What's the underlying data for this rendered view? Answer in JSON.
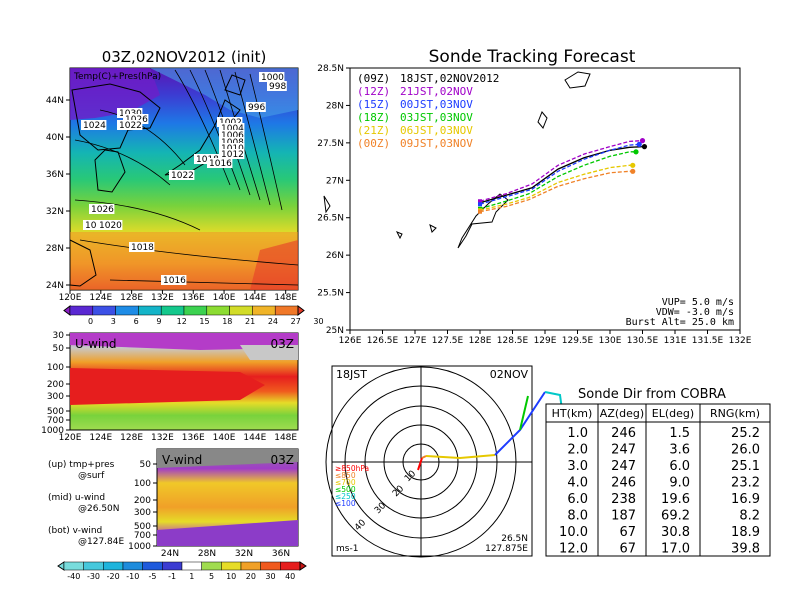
{
  "map_panel": {
    "title": "03Z,02NOV2012 (init)",
    "overlay_label": "Temp(C)+Pres(hPa)",
    "lon_ticks": [
      "120E",
      "124E",
      "128E",
      "132E",
      "136E",
      "140E",
      "144E",
      "148E"
    ],
    "lat_ticks": [
      "44N",
      "40N",
      "36N",
      "32N",
      "28N",
      "24N"
    ],
    "isobar_labels": [
      "1000",
      "998",
      "996",
      "1002",
      "1004",
      "1006",
      "1008",
      "1010",
      "1012",
      "1018",
      "1016",
      "1022",
      "1024",
      "1026",
      "1028",
      "1030",
      "1026",
      "1022",
      "1020",
      "1018",
      "1016"
    ],
    "colorbar_ticks": [
      "0",
      "3",
      "6",
      "9",
      "12",
      "15",
      "18",
      "21",
      "24",
      "27",
      "30"
    ]
  },
  "u_panel": {
    "label": "U-wind",
    "time": "03Z",
    "y_ticks": [
      "30",
      "50",
      "100",
      "200",
      "300",
      "500",
      "700",
      "1000"
    ],
    "x_ticks": [
      "120E",
      "124E",
      "128E",
      "132E",
      "136E",
      "140E",
      "144E",
      "148E"
    ]
  },
  "v_panel": {
    "label": "V-wind",
    "time": "03Z",
    "y_ticks": [
      "50",
      "100",
      "200",
      "300",
      "500",
      "700",
      "1000"
    ],
    "x_ticks": [
      "24N",
      "28N",
      "32N",
      "36N"
    ]
  },
  "notes": {
    "up_a": "(up) tmp+pres",
    "up_b": "@surf",
    "mid_a": "(mid) u-wind",
    "mid_b": "@26.50N",
    "bot_a": "(bot) v-wind",
    "bot_b": "@127.84E"
  },
  "wind_colorbar_ticks": [
    "-40",
    "-30",
    "-20",
    "-10",
    "-5",
    "-1",
    "1",
    "5",
    "10",
    "20",
    "30",
    "40"
  ],
  "track_chart": {
    "title": "Sonde Tracking Forecast",
    "x_ticks": [
      "126E",
      "126.5E",
      "127E",
      "127.5E",
      "128E",
      "128.5E",
      "129E",
      "129.5E",
      "130E",
      "130.5E",
      "131E",
      "131.5E",
      "132E"
    ],
    "y_ticks": [
      "28.5N",
      "28N",
      "27.5N",
      "27N",
      "26.5N",
      "26N",
      "25.5N",
      "25N"
    ],
    "legend": [
      {
        "code": "(09Z)",
        "text": "18JST,02NOV2012",
        "color": "#000000"
      },
      {
        "code": "(12Z)",
        "text": "21JST,02NOV",
        "color": "#a000c8"
      },
      {
        "code": "(15Z)",
        "text": "00JST,03NOV",
        "color": "#1e3cff"
      },
      {
        "code": "(18Z)",
        "text": "03JST,03NOV",
        "color": "#00c800"
      },
      {
        "code": "(21Z)",
        "text": "06JST,03NOV",
        "color": "#e6c800"
      },
      {
        "code": "(00Z)",
        "text": "09JST,03NOV",
        "color": "#f08228"
      }
    ],
    "params": [
      "VUP= 5.0 m/s",
      "VDW= -3.0 m/s",
      "Burst Alt= 25.0 km"
    ]
  },
  "chart_data": {
    "type": "line",
    "title": "Sonde Tracking Forecast",
    "xlabel": "",
    "ylabel": "",
    "xlim": [
      126,
      132
    ],
    "ylim": [
      25,
      28.5
    ],
    "series": [
      {
        "name": "(09Z) 18JST,02NOV2012",
        "color": "#000000",
        "x": [
          128.0,
          128.4,
          128.8,
          129.2,
          129.6,
          130.0,
          130.3,
          130.53
        ],
        "y": [
          26.7,
          26.8,
          26.9,
          27.15,
          27.3,
          27.4,
          27.44,
          27.45
        ]
      },
      {
        "name": "(12Z) 21JST,02NOV",
        "color": "#a000c8",
        "x": [
          128.0,
          128.4,
          128.8,
          129.2,
          129.6,
          130.0,
          130.3,
          130.5
        ],
        "y": [
          26.72,
          26.82,
          26.95,
          27.2,
          27.35,
          27.45,
          27.52,
          27.53
        ]
      },
      {
        "name": "(15Z) 00JST,03NOV",
        "color": "#1e3cff",
        "x": [
          128.0,
          128.4,
          128.8,
          129.2,
          129.6,
          130.0,
          130.3,
          130.45
        ],
        "y": [
          26.68,
          26.78,
          26.88,
          27.12,
          27.28,
          27.4,
          27.47,
          27.48
        ]
      },
      {
        "name": "(18Z) 03JST,03NOV",
        "color": "#00c800",
        "x": [
          128.0,
          128.4,
          128.75,
          129.2,
          129.6,
          130.0,
          130.3,
          130.4
        ],
        "y": [
          26.62,
          26.72,
          26.82,
          27.05,
          27.2,
          27.32,
          27.38,
          27.38
        ]
      },
      {
        "name": "(21Z) 06JST,03NOV",
        "color": "#e6c800",
        "x": [
          128.0,
          128.4,
          128.75,
          129.2,
          129.6,
          130.0,
          130.3,
          130.35
        ],
        "y": [
          26.6,
          26.68,
          26.77,
          26.97,
          27.08,
          27.17,
          27.2,
          27.2
        ]
      },
      {
        "name": "(00Z) 09JST,03NOV",
        "color": "#f08228",
        "x": [
          128.0,
          128.4,
          128.75,
          129.2,
          129.6,
          130.0,
          130.3,
          130.35
        ],
        "y": [
          26.58,
          26.65,
          26.74,
          26.92,
          27.02,
          27.1,
          27.12,
          27.12
        ]
      }
    ]
  },
  "polar": {
    "time": "18JST",
    "date": "02NOV",
    "ring_labels": [
      "10",
      "20",
      "30",
      "40"
    ],
    "unit": "ms-1",
    "lat": "26.5N",
    "lon": "127.875E",
    "legend": [
      {
        "label": "≥850hPa",
        "color": "#ff0000"
      },
      {
        "label": "≤850",
        "color": "#f08228"
      },
      {
        "label": "≤700",
        "color": "#e6c800"
      },
      {
        "label": "≤500",
        "color": "#00c800"
      },
      {
        "label": "≤250",
        "color": "#00c8c8"
      },
      {
        "label": "≤100",
        "color": "#1e3cff"
      }
    ]
  },
  "sonde_table": {
    "title": "Sonde Dir from COBRA",
    "headers": [
      "HT(km)",
      "AZ(deg)",
      "EL(deg)",
      "RNG(km)"
    ],
    "rows": [
      [
        "1.0",
        "246",
        "1.5",
        "25.2"
      ],
      [
        "2.0",
        "247",
        "3.6",
        "26.0"
      ],
      [
        "3.0",
        "247",
        "6.0",
        "25.1"
      ],
      [
        "4.0",
        "246",
        "9.0",
        "23.2"
      ],
      [
        "6.0",
        "238",
        "19.6",
        "16.9"
      ],
      [
        "8.0",
        "187",
        "69.2",
        "8.2"
      ],
      [
        "10.0",
        "67",
        "30.8",
        "18.9"
      ],
      [
        "12.0",
        "67",
        "17.0",
        "39.8"
      ]
    ]
  }
}
